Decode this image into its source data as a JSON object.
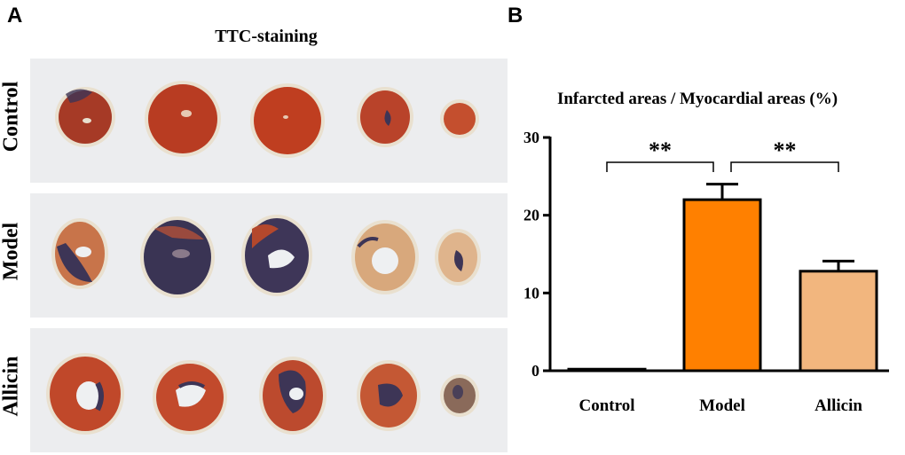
{
  "panels": {
    "a": {
      "letter": "A",
      "title": "TTC-staining",
      "rows": [
        {
          "label": "Control"
        },
        {
          "label": "Model"
        },
        {
          "label": "Allicin"
        }
      ]
    },
    "b": {
      "letter": "B"
    }
  },
  "colors": {
    "tissue_red": "#b83c22",
    "infarct_purple": "#3d3556",
    "pale_tissue": "#e6b48a",
    "bar_control": "#ffffff",
    "bar_model": "#ff8000",
    "bar_allicin": "#f2b67e"
  },
  "chart_data": {
    "type": "bar",
    "title": "Infarcted areas / Myocardial areas (%)",
    "categories": [
      "Control",
      "Model",
      "Allicin"
    ],
    "values": [
      0.2,
      22.0,
      12.8
    ],
    "errors": [
      0.0,
      2.0,
      1.3
    ],
    "ylim": [
      0,
      30
    ],
    "yticks": [
      0,
      10,
      20,
      30
    ],
    "xlabel": "",
    "ylabel": "",
    "grid": false,
    "annotations": [
      {
        "from": "Control",
        "to": "Model",
        "text": "**"
      },
      {
        "from": "Model",
        "to": "Allicin",
        "text": "**"
      }
    ]
  }
}
